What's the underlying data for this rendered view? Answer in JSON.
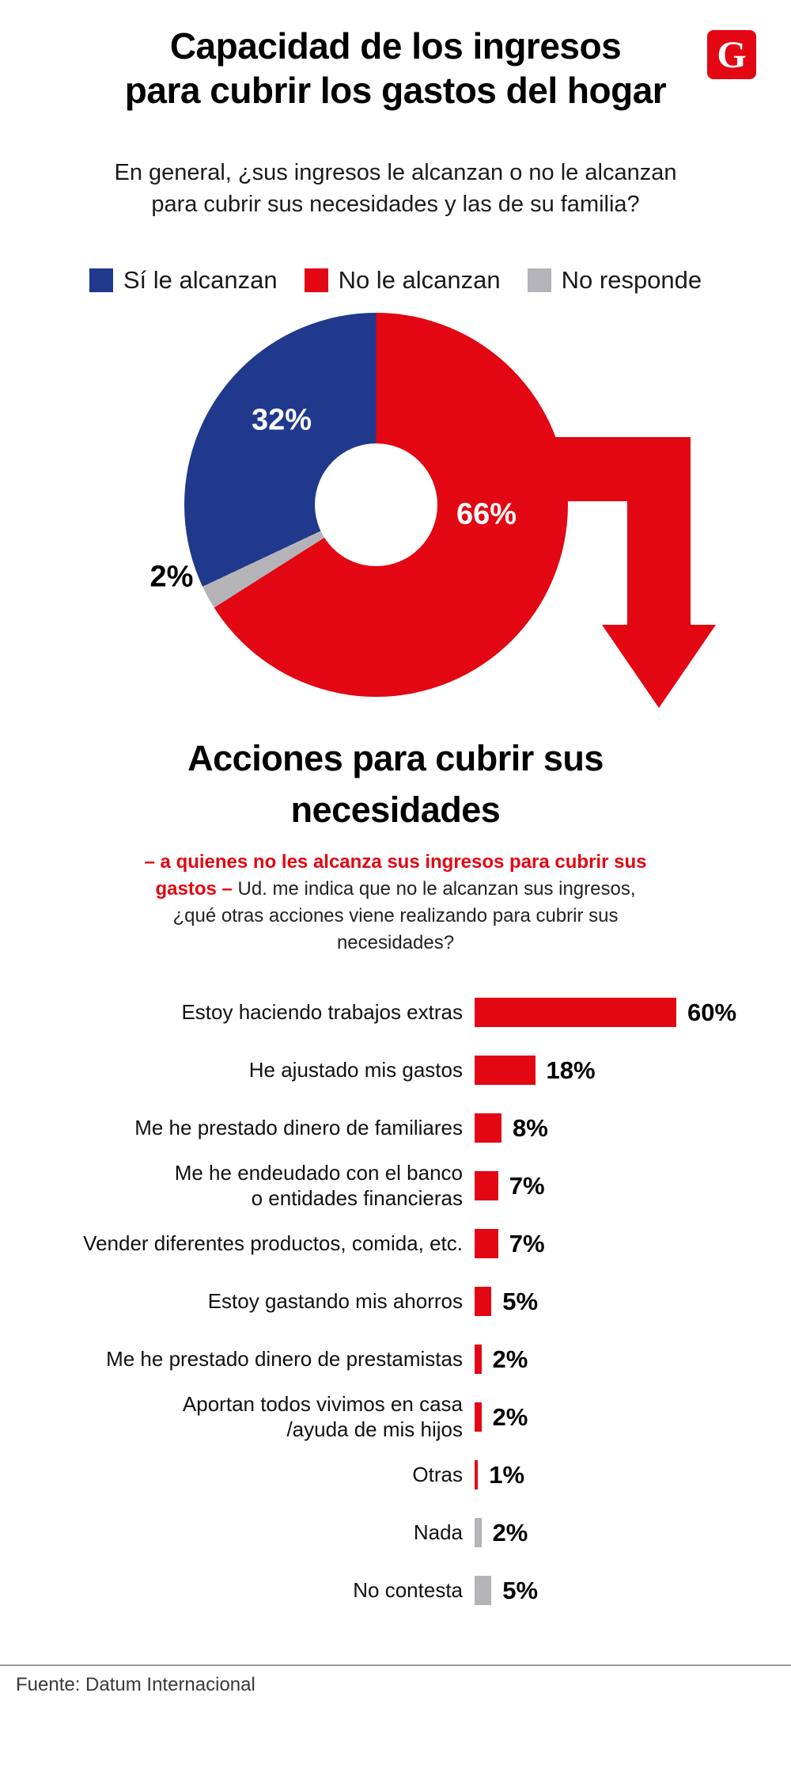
{
  "colors": {
    "red": "#e30613",
    "blue": "#20398c",
    "gray": "#b4b4b8",
    "text_dark": "#111111"
  },
  "header": {
    "title": "Capacidad de los ingresos\npara cubrir los gastos del hogar",
    "logo_letter": "G"
  },
  "income_section": {
    "question": "En general, ¿sus ingresos le alcanzan o no le alcanzan\npara cubrir sus necesidades y las de su familia?",
    "legend": [
      {
        "label": "Sí le alcanzan",
        "color": "#20398c"
      },
      {
        "label": "No le alcanzan",
        "color": "#e30613"
      },
      {
        "label": "No responde",
        "color": "#b4b4b8"
      }
    ]
  },
  "actions_section": {
    "title": "Acciones para cubrir sus\nnecesidades",
    "intro_red": "– a quienes no les alcanza sus ingresos para cubrir sus gastos –",
    "intro_rest": "Ud. me indica que no le alcanzan sus ingresos, ¿qué otras acciones viene realizando para cubrir sus necesidades?"
  },
  "footer": {
    "source": "Fuente: Datum Internacional"
  },
  "chart_data": [
    {
      "type": "pie",
      "subtype": "donut",
      "title": "En general, ¿sus ingresos le alcanzan o no le alcanzan para cubrir sus necesidades y las de su familia?",
      "start_angle": "top",
      "direction": "clockwise",
      "slices": [
        {
          "label": "No le alcanzan",
          "value": 66,
          "value_label": "66%",
          "color": "#e30613"
        },
        {
          "label": "No responde",
          "value": 2,
          "value_label": "2%",
          "color": "#b4b4b8"
        },
        {
          "label": "Sí le alcanzan",
          "value": 32,
          "value_label": "32%",
          "color": "#20398c"
        }
      ]
    },
    {
      "type": "bar",
      "orientation": "horizontal",
      "title": "Acciones para cubrir sus necesidades",
      "xlim": [
        0,
        65
      ],
      "rows": [
        {
          "label": "Estoy haciendo trabajos extras",
          "value": 60,
          "value_label": "60%",
          "color": "#e30613"
        },
        {
          "label": "He ajustado mis gastos",
          "value": 18,
          "value_label": "18%",
          "color": "#e30613"
        },
        {
          "label": "Me he prestado dinero de familiares",
          "value": 8,
          "value_label": "8%",
          "color": "#e30613"
        },
        {
          "label": "Me he endeudado con el banco\no entidades financieras",
          "value": 7,
          "value_label": "7%",
          "color": "#e30613"
        },
        {
          "label": "Vender diferentes productos, comida, etc.",
          "value": 7,
          "value_label": "7%",
          "color": "#e30613"
        },
        {
          "label": "Estoy gastando mis ahorros",
          "value": 5,
          "value_label": "5%",
          "color": "#e30613"
        },
        {
          "label": "Me he prestado dinero de prestamistas",
          "value": 2,
          "value_label": "2%",
          "color": "#e30613"
        },
        {
          "label": "Aportan todos vivimos en casa\n/ayuda de mis hijos",
          "value": 2,
          "value_label": "2%",
          "color": "#e30613"
        },
        {
          "label": "Otras",
          "value": 1,
          "value_label": "1%",
          "color": "#e30613"
        },
        {
          "label": "Nada",
          "value": 2,
          "value_label": "2%",
          "color": "#b4b4b8"
        },
        {
          "label": "No contesta",
          "value": 5,
          "value_label": "5%",
          "color": "#b4b4b8"
        }
      ]
    }
  ]
}
